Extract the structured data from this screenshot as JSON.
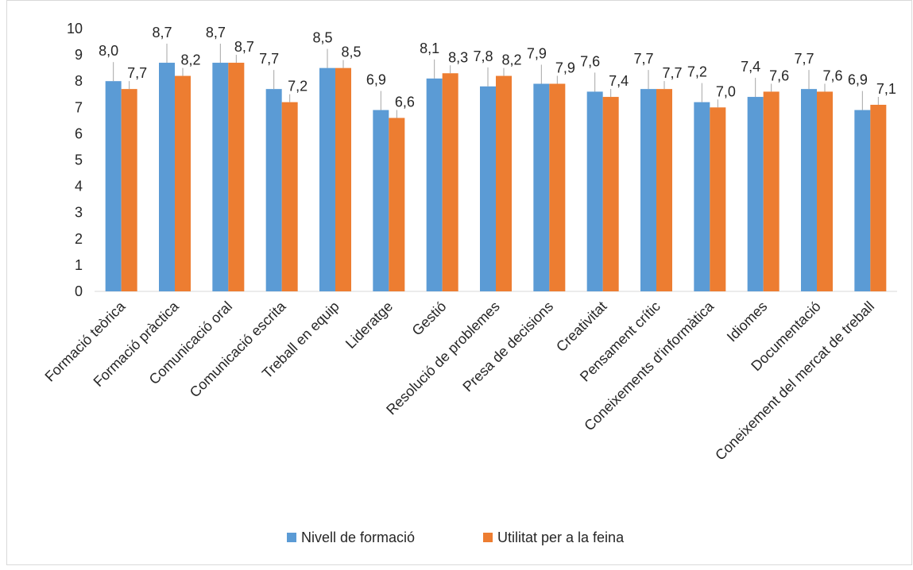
{
  "chart_data": {
    "type": "bar",
    "title": "",
    "xlabel": "",
    "ylabel": "",
    "ylim": [
      0,
      10
    ],
    "yticks": [
      0,
      1,
      2,
      3,
      4,
      5,
      6,
      7,
      8,
      9,
      10
    ],
    "grid": false,
    "legend_position": "bottom",
    "categories": [
      "Formació teòrica",
      "Formació pràctica",
      "Comunicació oral",
      "Comunicació escrita",
      "Treball en equip",
      "Lideratge",
      "Gestió",
      "Resolució de problemes",
      "Presa de decisions",
      "Creativitat",
      "Pensament crític",
      "Coneixements d'informàtica",
      "Idiomes",
      "Documentació",
      "Coneixement del mercat de treball"
    ],
    "series": [
      {
        "name": "Nivell de formació",
        "color": "#5B9BD5",
        "values": [
          8.0,
          8.7,
          8.7,
          7.7,
          8.5,
          6.9,
          8.1,
          7.8,
          7.9,
          7.6,
          7.7,
          7.2,
          7.4,
          7.7,
          6.9
        ],
        "labels": [
          "8,0",
          "8,7",
          "8,7",
          "7,7",
          "8,5",
          "6,9",
          "8,1",
          "7,8",
          "7,9",
          "7,6",
          "7,7",
          "7,2",
          "7,4",
          "7,7",
          "6,9"
        ]
      },
      {
        "name": "Utilitat per a la feina",
        "color": "#ED7D31",
        "values": [
          7.7,
          8.2,
          8.7,
          7.2,
          8.5,
          6.6,
          8.3,
          8.2,
          7.9,
          7.4,
          7.7,
          7.0,
          7.6,
          7.6,
          7.1
        ],
        "labels": [
          "7,7",
          "8,2",
          "8,7",
          "7,2",
          "8,5",
          "6,6",
          "8,3",
          "8,2",
          "7,9",
          "7,4",
          "7,7",
          "7,0",
          "7,6",
          "7,6",
          "7,1"
        ]
      }
    ]
  }
}
